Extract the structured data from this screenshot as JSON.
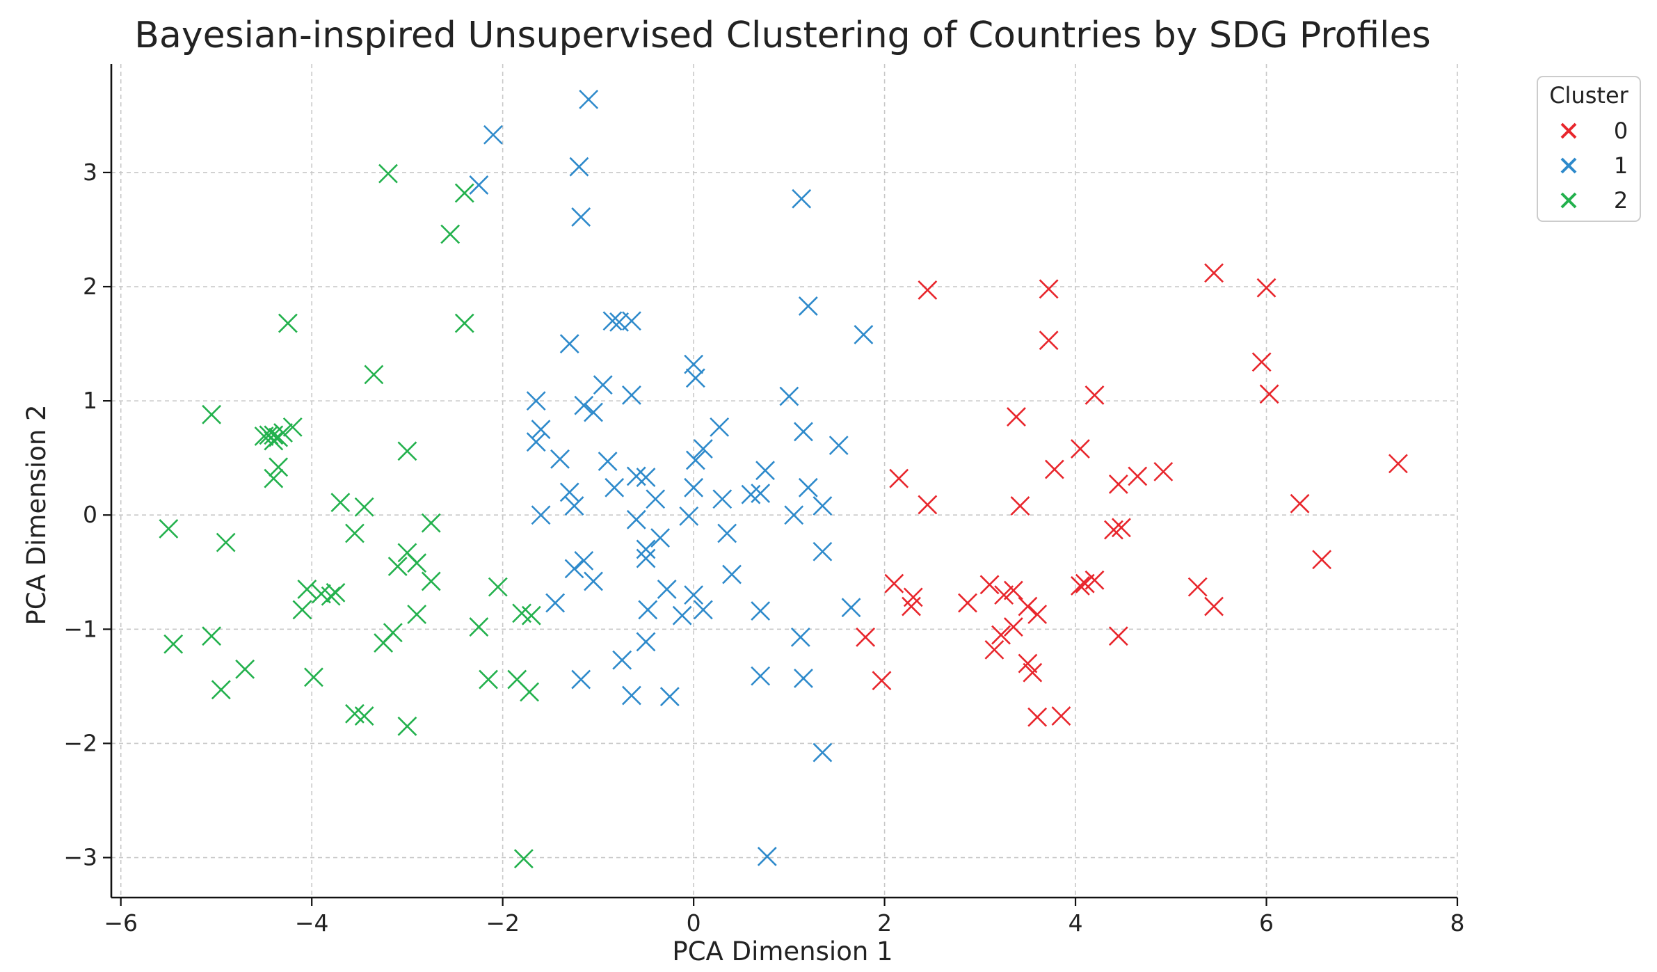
{
  "chart_data": {
    "type": "scatter",
    "title": "Bayesian-inspired Unsupervised Clustering of Countries by SDG Profiles",
    "xlabel": "PCA Dimension 1",
    "ylabel": "PCA Dimension 2",
    "xlim": [
      -6.1,
      8.0
    ],
    "ylim": [
      -3.35,
      3.95
    ],
    "xticks": [
      -6,
      -4,
      -2,
      0,
      2,
      4,
      6,
      8
    ],
    "xtick_labels": [
      "−6",
      "−4",
      "−2",
      "0",
      "2",
      "4",
      "6",
      "8"
    ],
    "yticks": [
      -3,
      -2,
      -1,
      0,
      1,
      2,
      3
    ],
    "ytick_labels": [
      "−3",
      "−2",
      "−1",
      "0",
      "1",
      "2",
      "3"
    ],
    "grid": true,
    "marker": "x",
    "legend": {
      "title": "Cluster",
      "position": "outside-top-right"
    },
    "series": [
      {
        "name": "0",
        "color": "#e8262c",
        "points": [
          [
            2.45,
            1.97
          ],
          [
            3.72,
            1.98
          ],
          [
            5.45,
            2.12
          ],
          [
            6.0,
            1.99
          ],
          [
            5.95,
            1.34
          ],
          [
            3.72,
            1.53
          ],
          [
            6.03,
            1.06
          ],
          [
            4.2,
            1.05
          ],
          [
            3.38,
            0.86
          ],
          [
            7.38,
            0.45
          ],
          [
            4.05,
            0.58
          ],
          [
            3.78,
            0.4
          ],
          [
            4.92,
            0.38
          ],
          [
            4.65,
            0.34
          ],
          [
            2.15,
            0.32
          ],
          [
            4.45,
            0.27
          ],
          [
            2.45,
            0.09
          ],
          [
            3.42,
            0.08
          ],
          [
            6.35,
            0.1
          ],
          [
            4.4,
            -0.13
          ],
          [
            4.48,
            -0.11
          ],
          [
            6.58,
            -0.39
          ],
          [
            2.1,
            -0.6
          ],
          [
            2.3,
            -0.72
          ],
          [
            2.28,
            -0.8
          ],
          [
            3.1,
            -0.61
          ],
          [
            3.25,
            -0.7
          ],
          [
            3.35,
            -0.66
          ],
          [
            4.05,
            -0.62
          ],
          [
            4.1,
            -0.6
          ],
          [
            4.2,
            -0.57
          ],
          [
            5.28,
            -0.63
          ],
          [
            5.45,
            -0.8
          ],
          [
            2.87,
            -0.77
          ],
          [
            3.5,
            -0.8
          ],
          [
            3.6,
            -0.87
          ],
          [
            1.8,
            -1.07
          ],
          [
            3.35,
            -0.98
          ],
          [
            3.22,
            -1.05
          ],
          [
            3.15,
            -1.18
          ],
          [
            4.45,
            -1.06
          ],
          [
            3.5,
            -1.3
          ],
          [
            3.55,
            -1.38
          ],
          [
            1.97,
            -1.45
          ],
          [
            3.6,
            -1.77
          ],
          [
            3.85,
            -1.76
          ]
        ]
      },
      {
        "name": "1",
        "color": "#2e8acb",
        "points": [
          [
            -1.1,
            3.64
          ],
          [
            -2.1,
            3.33
          ],
          [
            -1.2,
            3.05
          ],
          [
            -2.25,
            2.89
          ],
          [
            -1.18,
            2.61
          ],
          [
            1.13,
            2.77
          ],
          [
            1.2,
            1.83
          ],
          [
            -0.85,
            1.7
          ],
          [
            -0.78,
            1.69
          ],
          [
            -0.65,
            1.7
          ],
          [
            1.78,
            1.58
          ],
          [
            -1.3,
            1.5
          ],
          [
            0.0,
            1.32
          ],
          [
            0.02,
            1.2
          ],
          [
            -0.95,
            1.14
          ],
          [
            -0.65,
            1.05
          ],
          [
            1.0,
            1.04
          ],
          [
            -1.65,
            1.0
          ],
          [
            -1.15,
            0.96
          ],
          [
            -1.05,
            0.9
          ],
          [
            -1.6,
            0.75
          ],
          [
            0.27,
            0.77
          ],
          [
            1.15,
            0.73
          ],
          [
            -1.65,
            0.64
          ],
          [
            1.52,
            0.61
          ],
          [
            0.1,
            0.58
          ],
          [
            0.02,
            0.48
          ],
          [
            -0.9,
            0.47
          ],
          [
            -1.4,
            0.49
          ],
          [
            0.75,
            0.39
          ],
          [
            -0.6,
            0.34
          ],
          [
            -0.5,
            0.33
          ],
          [
            -0.83,
            0.24
          ],
          [
            0.0,
            0.24
          ],
          [
            1.2,
            0.24
          ],
          [
            -1.3,
            0.2
          ],
          [
            0.6,
            0.18
          ],
          [
            0.7,
            0.19
          ],
          [
            -0.4,
            0.14
          ],
          [
            0.3,
            0.14
          ],
          [
            -1.25,
            0.08
          ],
          [
            1.35,
            0.08
          ],
          [
            -0.6,
            -0.04
          ],
          [
            -1.6,
            0.0
          ],
          [
            -0.05,
            -0.01
          ],
          [
            1.05,
            0.0
          ],
          [
            0.35,
            -0.16
          ],
          [
            -0.35,
            -0.2
          ],
          [
            -0.5,
            -0.3
          ],
          [
            1.35,
            -0.32
          ],
          [
            -1.15,
            -0.4
          ],
          [
            -0.5,
            -0.38
          ],
          [
            -1.25,
            -0.47
          ],
          [
            -1.05,
            -0.58
          ],
          [
            0.4,
            -0.52
          ],
          [
            -0.28,
            -0.65
          ],
          [
            -0.12,
            -0.88
          ],
          [
            0.0,
            -0.7
          ],
          [
            0.1,
            -0.83
          ],
          [
            -1.45,
            -0.77
          ],
          [
            -0.48,
            -0.83
          ],
          [
            0.7,
            -0.84
          ],
          [
            1.65,
            -0.81
          ],
          [
            -0.5,
            -1.11
          ],
          [
            1.12,
            -1.07
          ],
          [
            -0.75,
            -1.27
          ],
          [
            -1.18,
            -1.44
          ],
          [
            0.7,
            -1.41
          ],
          [
            1.15,
            -1.43
          ],
          [
            -0.65,
            -1.58
          ],
          [
            -0.25,
            -1.59
          ],
          [
            1.35,
            -2.08
          ],
          [
            0.77,
            -2.99
          ]
        ]
      },
      {
        "name": "2",
        "color": "#23b14d",
        "points": [
          [
            -3.2,
            2.99
          ],
          [
            -2.4,
            2.82
          ],
          [
            -2.55,
            2.46
          ],
          [
            -4.25,
            1.68
          ],
          [
            -2.4,
            1.68
          ],
          [
            -3.35,
            1.23
          ],
          [
            -5.05,
            0.88
          ],
          [
            -4.2,
            0.77
          ],
          [
            -4.5,
            0.69
          ],
          [
            -4.45,
            0.7
          ],
          [
            -4.4,
            0.7
          ],
          [
            -4.35,
            0.68
          ],
          [
            -4.4,
            0.65
          ],
          [
            -4.3,
            0.72
          ],
          [
            -3.0,
            0.56
          ],
          [
            -4.35,
            0.42
          ],
          [
            -4.4,
            0.32
          ],
          [
            -3.7,
            0.11
          ],
          [
            -3.45,
            0.07
          ],
          [
            -2.75,
            -0.07
          ],
          [
            -5.5,
            -0.12
          ],
          [
            -3.55,
            -0.16
          ],
          [
            -4.9,
            -0.24
          ],
          [
            -3.0,
            -0.33
          ],
          [
            -3.1,
            -0.45
          ],
          [
            -2.9,
            -0.42
          ],
          [
            -2.75,
            -0.58
          ],
          [
            -2.05,
            -0.63
          ],
          [
            -4.05,
            -0.65
          ],
          [
            -3.9,
            -0.69
          ],
          [
            -3.8,
            -0.71
          ],
          [
            -3.75,
            -0.68
          ],
          [
            -4.1,
            -0.83
          ],
          [
            -2.9,
            -0.87
          ],
          [
            -1.8,
            -0.86
          ],
          [
            -1.7,
            -0.88
          ],
          [
            -2.25,
            -0.98
          ],
          [
            -3.15,
            -1.03
          ],
          [
            -3.25,
            -1.12
          ],
          [
            -5.05,
            -1.06
          ],
          [
            -5.45,
            -1.13
          ],
          [
            -4.7,
            -1.35
          ],
          [
            -3.98,
            -1.42
          ],
          [
            -2.15,
            -1.44
          ],
          [
            -1.85,
            -1.44
          ],
          [
            -4.95,
            -1.53
          ],
          [
            -1.72,
            -1.55
          ],
          [
            -3.55,
            -1.74
          ],
          [
            -3.45,
            -1.76
          ],
          [
            -3.0,
            -1.85
          ],
          [
            -1.78,
            -3.01
          ]
        ]
      }
    ]
  }
}
